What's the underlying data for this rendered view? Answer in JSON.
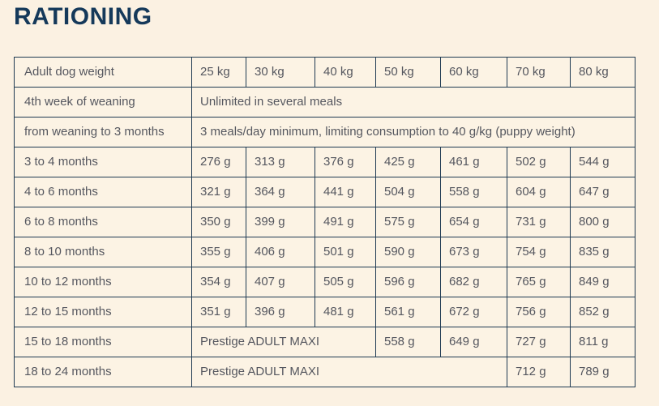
{
  "page": {
    "title": "RATIONING"
  },
  "colors": {
    "background": "#fbf1e2",
    "title": "#15395a",
    "border": "#1f3a52",
    "text": "#55575f"
  },
  "table": {
    "header": [
      "Adult dog weight",
      "25 kg",
      "30 kg",
      "40 kg",
      "50 kg",
      "60 kg",
      "70 kg",
      "80 kg"
    ],
    "rows": [
      {
        "label": "4th week of weaning",
        "span": 7,
        "span_text": "Unlimited in several meals",
        "values": []
      },
      {
        "label": "from weaning to 3 months",
        "span": 7,
        "span_text": "3 meals/day minimum, limiting consumption to 40 g/kg (puppy weight)",
        "values": []
      },
      {
        "label": "3 to 4 months",
        "values": [
          "276 g",
          "313 g",
          "376 g",
          "425 g",
          "461 g",
          "502 g",
          "544 g"
        ]
      },
      {
        "label": "4 to 6 months",
        "values": [
          "321 g",
          "364 g",
          "441 g",
          "504 g",
          "558 g",
          "604 g",
          "647 g"
        ]
      },
      {
        "label": "6 to 8 months",
        "values": [
          "350 g",
          "399 g",
          "491 g",
          "575 g",
          "654 g",
          "731 g",
          "800 g"
        ]
      },
      {
        "label": "8 to 10 months",
        "values": [
          "355 g",
          "406 g",
          "501 g",
          "590 g",
          "673 g",
          "754 g",
          "835 g"
        ]
      },
      {
        "label": "10 to 12 months",
        "values": [
          "354 g",
          "407 g",
          "505 g",
          "596 g",
          "682 g",
          "765 g",
          "849 g"
        ]
      },
      {
        "label": "12 to 15 months",
        "values": [
          "351 g",
          "396 g",
          "481 g",
          "561 g",
          "672 g",
          "756 g",
          "852 g"
        ]
      },
      {
        "label": "15 to 18 months",
        "span": 3,
        "span_text": "Prestige ADULT MAXI",
        "values": [
          "558 g",
          "649 g",
          "727 g",
          "811 g"
        ]
      },
      {
        "label": "18 to 24 months",
        "span": 5,
        "span_text": "Prestige ADULT MAXI",
        "values": [
          "712 g",
          "789 g"
        ]
      }
    ]
  }
}
